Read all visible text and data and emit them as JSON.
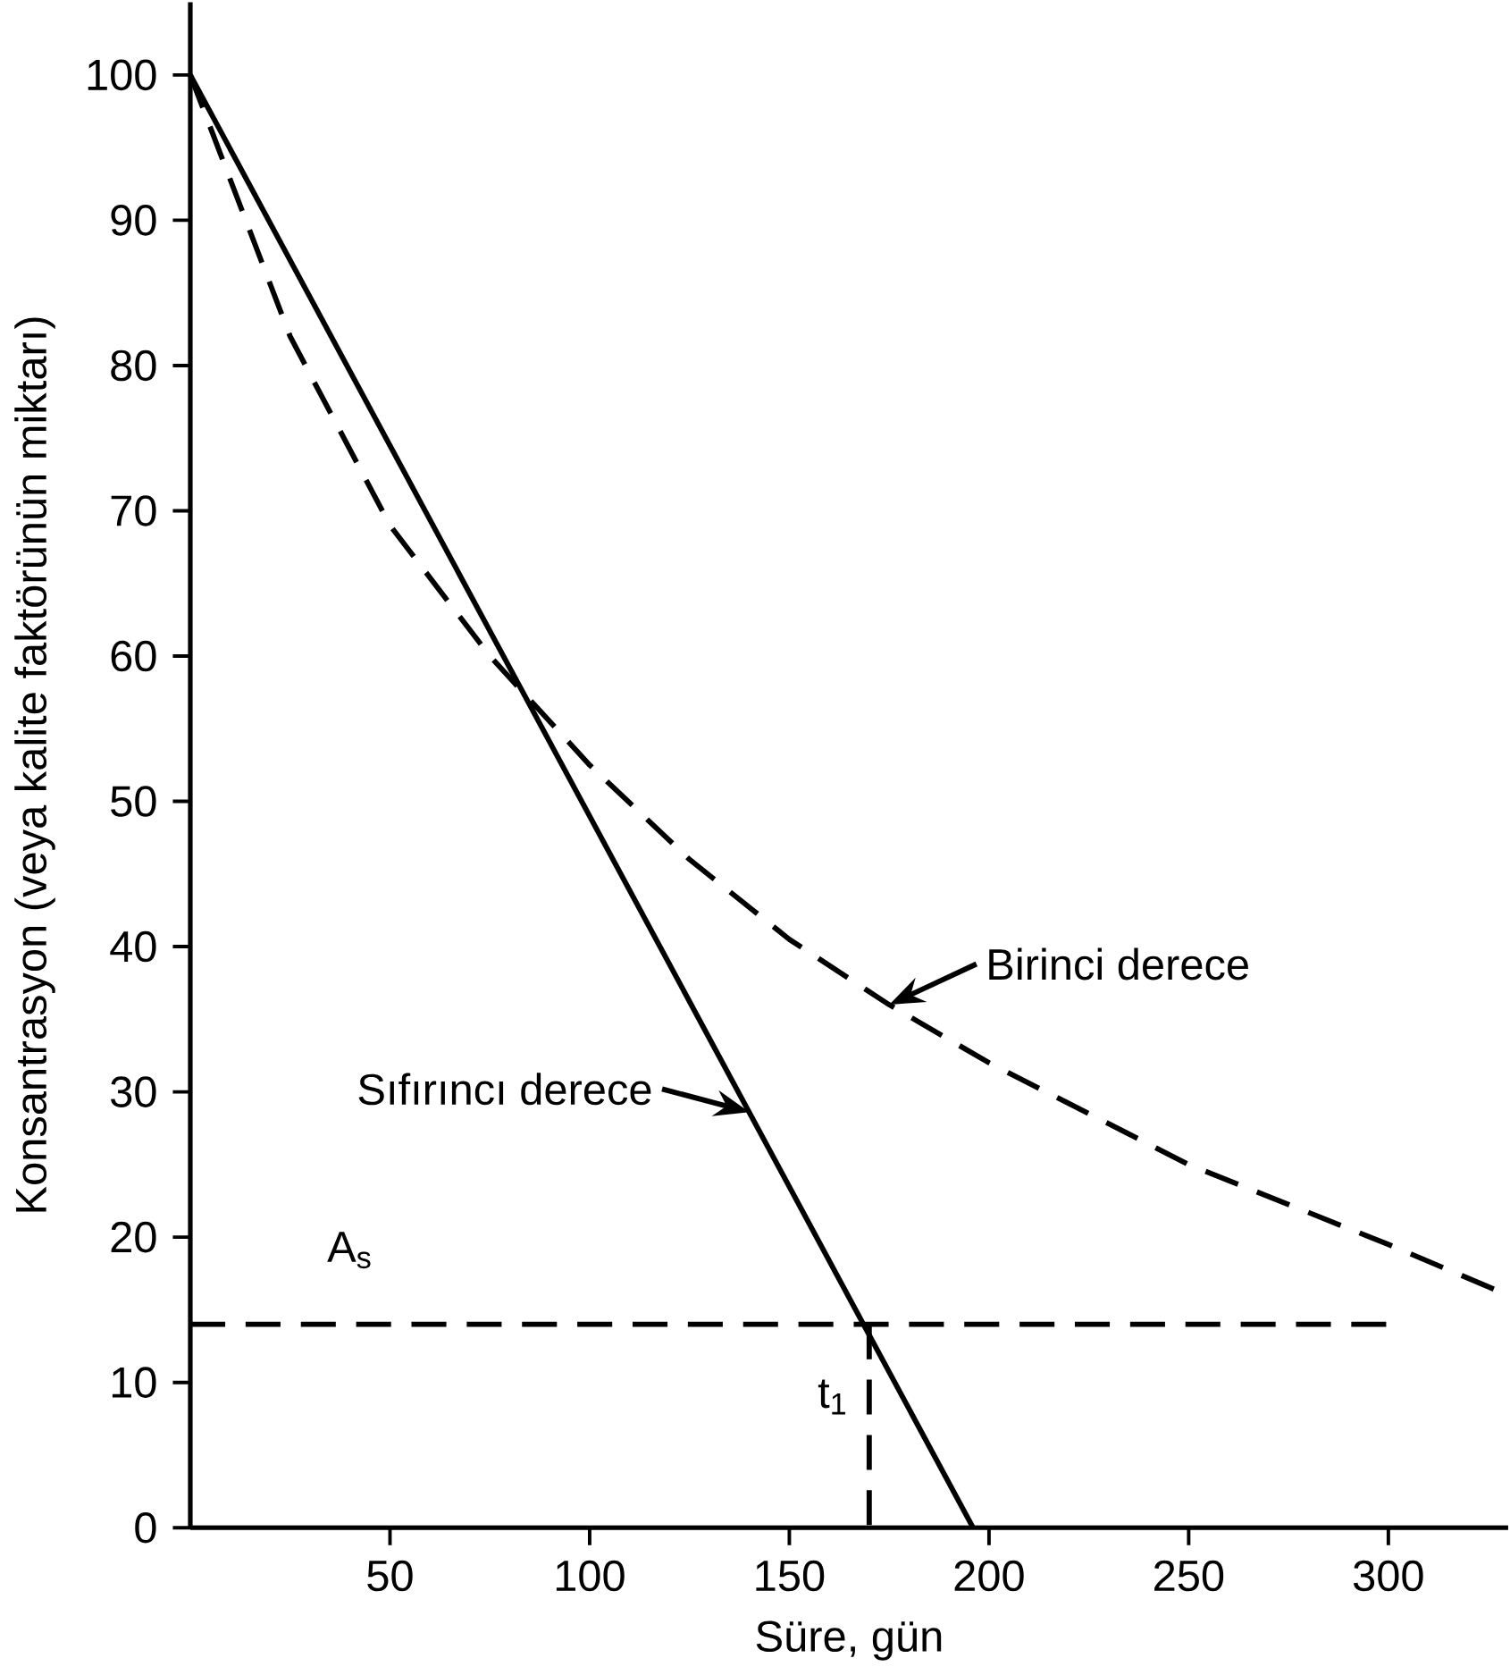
{
  "chart_data": {
    "type": "line",
    "xlabel": "Süre, gün",
    "ylabel": "Konsantrasyon (veya kalite faktörünün miktarı)",
    "xlim": [
      0,
      330
    ],
    "ylim": [
      0,
      105
    ],
    "xticks": [
      50,
      100,
      150,
      200,
      250,
      300
    ],
    "yticks": [
      0,
      10,
      20,
      30,
      40,
      50,
      60,
      70,
      80,
      90,
      100
    ],
    "series": [
      {
        "color": "#000000",
        "line_style": "solid",
        "x": [
          0,
          196
        ],
        "values": [
          100,
          0
        ]
      },
      {
        "color": "#000000",
        "line_style": "dashed",
        "x": [
          0,
          25,
          50,
          75,
          100,
          125,
          150,
          175,
          200,
          250,
          300,
          330
        ],
        "values": [
          100,
          82,
          69,
          60,
          52.5,
          46,
          40.5,
          36,
          32,
          25,
          19.5,
          16
        ]
      },
      {
        "color": "#000000",
        "line_style": "dashed",
        "x": [
          0,
          300
        ],
        "values": [
          14,
          14
        ]
      },
      {
        "color": "#000000",
        "line_style": "dashed",
        "x": [
          170,
          170
        ],
        "values": [
          14,
          0
        ]
      }
    ],
    "annotations": [
      {
        "text": "Birinci derece",
        "x": 175,
        "y": 36
      },
      {
        "text": "Sıfırıncı derece",
        "x": 140,
        "y": 28.6
      },
      {
        "text": "A$_{s}$",
        "x": 40,
        "y": 14
      },
      {
        "text": "t$_{1}$",
        "x": 170,
        "y": 9
      }
    ]
  }
}
